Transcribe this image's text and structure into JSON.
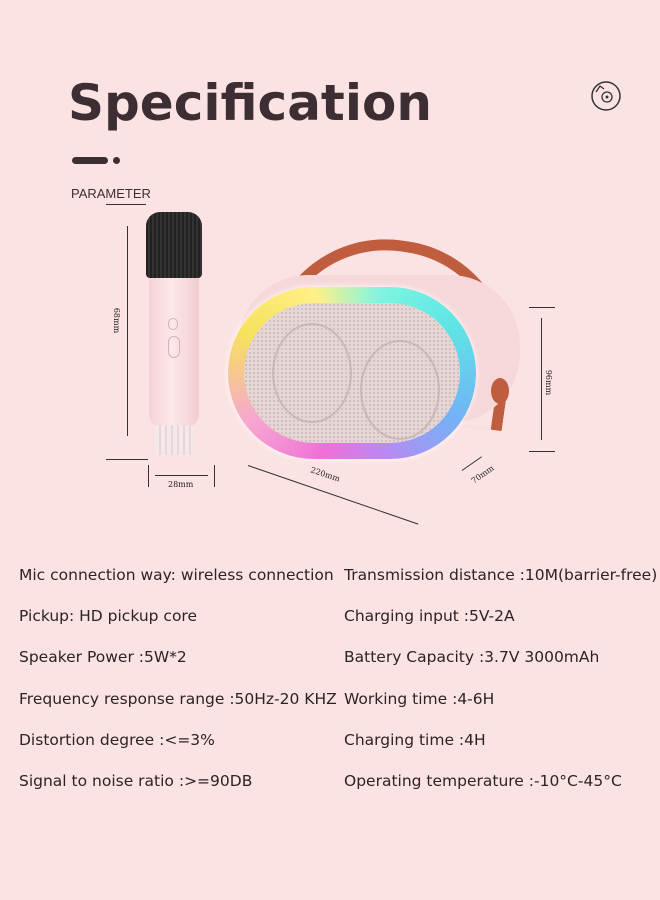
{
  "title": "Specification",
  "subtitle": "PARAMETER",
  "icons": {
    "top_right": "disc-icon"
  },
  "dimensions": {
    "mic_height": "68mm",
    "mic_width": "28mm",
    "speaker_length": "220mm",
    "speaker_depth": "70mm",
    "speaker_height": "96mm"
  },
  "colors": {
    "background": "#fce3e3",
    "text": "#3d2e33",
    "handle": "#c05d3f"
  },
  "specs": {
    "left": [
      "Mic connection way: wireless connection",
      "Pickup: HD pickup core",
      "Speaker Power :5W*2",
      "Frequency response range :50Hz-20 KHZ",
      "Distortion degree :<=3%",
      "Signal to noise ratio :>=90DB"
    ],
    "right": [
      "Transmission distance :10M(barrier-free)",
      "Charging input :5V-2A",
      "Battery Capacity :3.7V 3000mAh",
      "Working time :4-6H",
      "Charging time :4H",
      "Operating temperature :-10°C-45°C"
    ]
  }
}
